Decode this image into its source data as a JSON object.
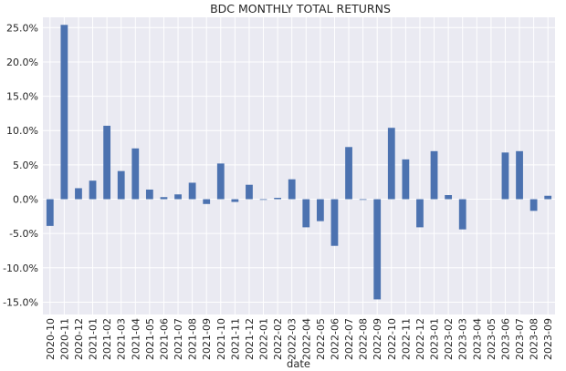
{
  "chart_data": {
    "type": "bar",
    "title": "BDC MONTHLY TOTAL RETURNS",
    "xlabel": "date",
    "ylabel": "",
    "ylim": [
      -0.168,
      0.265
    ],
    "y_ticks": [
      -0.15,
      -0.1,
      -0.05,
      0.0,
      0.05,
      0.1,
      0.15,
      0.2,
      0.25
    ],
    "y_tick_labels": [
      "-15.0%",
      "-10.0%",
      "-5.0%",
      "0.0%",
      "5.0%",
      "10.0%",
      "15.0%",
      "20.0%",
      "25.0%"
    ],
    "grid": true,
    "background_color": "#eaeaf2",
    "bar_color": "#4c72b0",
    "categories": [
      "2020-10",
      "2020-11",
      "2020-12",
      "2021-01",
      "2021-02",
      "2021-03",
      "2021-04",
      "2021-05",
      "2021-06",
      "2021-07",
      "2021-08",
      "2021-09",
      "2021-10",
      "2021-11",
      "2021-12",
      "2022-01",
      "2022-02",
      "2022-03",
      "2022-04",
      "2022-05",
      "2022-06",
      "2022-07",
      "2022-08",
      "2022-09",
      "2022-10",
      "2022-11",
      "2022-12",
      "2023-01",
      "2023-02",
      "2023-03",
      "2023-04",
      "2023-05",
      "2023-06",
      "2023-07",
      "2023-08",
      "2023-09"
    ],
    "values": [
      -0.039,
      0.254,
      0.016,
      0.027,
      0.107,
      0.041,
      0.074,
      0.014,
      0.003,
      0.007,
      0.024,
      -0.007,
      0.052,
      -0.004,
      0.021,
      -0.001,
      0.002,
      0.029,
      -0.041,
      -0.032,
      -0.068,
      0.076,
      -0.001,
      -0.146,
      0.104,
      0.058,
      -0.041,
      0.07,
      0.006,
      -0.044,
      0.0,
      0.0,
      0.068,
      0.07,
      -0.017,
      0.005
    ]
  }
}
